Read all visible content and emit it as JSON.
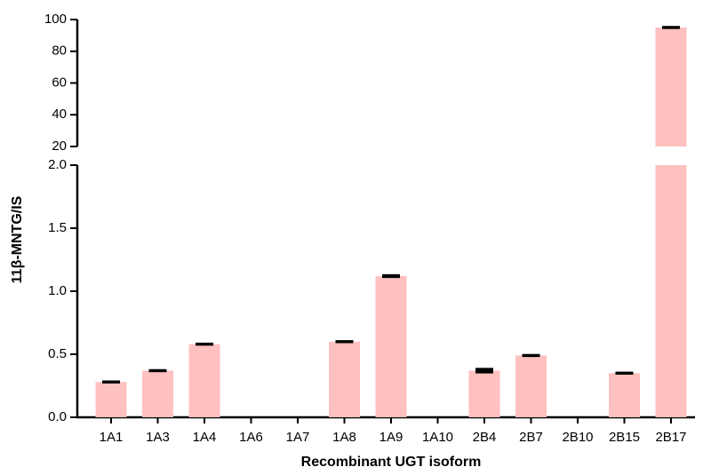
{
  "chart_data": {
    "type": "bar",
    "x_label": "Recombinant UGT isoform",
    "y_label": "11β-MNTG/IS",
    "categories": [
      "1A1",
      "1A3",
      "1A4",
      "1A6",
      "1A7",
      "1A8",
      "1A9",
      "1A10",
      "2B4",
      "2B7",
      "2B10",
      "2B15",
      "2B17"
    ],
    "values": [
      0.28,
      0.37,
      0.58,
      0,
      0,
      0.6,
      1.12,
      0,
      0.37,
      0.49,
      0,
      0.35,
      95
    ],
    "errors": [
      0.005,
      0.005,
      0.005,
      null,
      null,
      0.005,
      0.008,
      null,
      0.015,
      0.005,
      null,
      0.005,
      0.4
    ],
    "color": "#ffc0c0",
    "error_color": "#000000",
    "y_segments": [
      {
        "ylim": [
          0,
          2
        ],
        "yticks": [
          {
            "value": 0,
            "label": "0.0"
          },
          {
            "value": 0.5,
            "label": "0.5"
          },
          {
            "value": 1,
            "label": "1.0"
          },
          {
            "value": 1.5,
            "label": "1.5"
          },
          {
            "value": 2,
            "label": "2.0"
          }
        ]
      },
      {
        "ylim": [
          20,
          100
        ],
        "yticks": [
          20,
          40,
          60,
          80,
          100
        ]
      }
    ]
  }
}
